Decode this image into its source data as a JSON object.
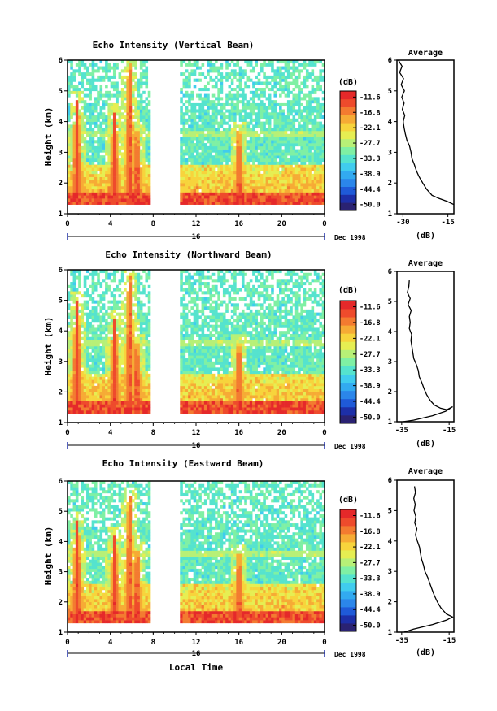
{
  "figure": {
    "xlabel": "Local Time",
    "date_label": "Dec 1998",
    "day_label": "16"
  },
  "colorbar": {
    "unit": "(dB)",
    "range": [
      -53,
      -9
    ],
    "ticks": [
      "-11.6",
      "-16.8",
      "-22.1",
      "-27.7",
      "-33.3",
      "-38.9",
      "-44.4",
      "-50.0"
    ],
    "colors": [
      "#2a2272",
      "#1d2fa8",
      "#1f5ad8",
      "#2b86ea",
      "#32aaf0",
      "#40ccee",
      "#55e3ce",
      "#7ff0a4",
      "#b7f077",
      "#e6ee52",
      "#f7d43c",
      "#f6ab35",
      "#f37b30",
      "#ee4b2c",
      "#e5292a"
    ]
  },
  "chart_data": [
    {
      "type": "heatmap",
      "title": "Echo Intensity (Vertical Beam)",
      "xlabel": "",
      "ylabel": "Height (km)",
      "xlim": [
        0,
        24
      ],
      "ylim": [
        1,
        6
      ],
      "xticks": [
        "0",
        "4",
        "8",
        "12",
        "16",
        "20",
        "0"
      ],
      "yticks": [
        "1",
        "2",
        "3",
        "4",
        "5",
        "6"
      ],
      "gap_hours": [
        7.8,
        10.5
      ],
      "plumes": [
        {
          "center_hour": 0.9,
          "top_km": 4.7,
          "peak_db": -10
        },
        {
          "center_hour": 4.4,
          "top_km": 4.3,
          "peak_db": -10
        },
        {
          "center_hour": 5.8,
          "top_km": 5.9,
          "peak_db": -11
        },
        {
          "center_hour": 6.5,
          "top_km": 3.7,
          "peak_db": -10
        },
        {
          "center_hour": 16.0,
          "top_km": 3.7,
          "peak_db": -11
        }
      ]
    },
    {
      "type": "heatmap",
      "title": "Echo Intensity (Northward Beam)",
      "xlabel": "",
      "ylabel": "Height (km)",
      "xlim": [
        0,
        24
      ],
      "ylim": [
        1,
        6
      ],
      "xticks": [
        "0",
        "4",
        "8",
        "12",
        "16",
        "20",
        "0"
      ],
      "yticks": [
        "1",
        "2",
        "3",
        "4",
        "5",
        "6"
      ],
      "gap_hours": [
        7.8,
        10.5
      ],
      "plumes": [
        {
          "center_hour": 0.9,
          "top_km": 5.0,
          "peak_db": -10
        },
        {
          "center_hour": 4.4,
          "top_km": 4.4,
          "peak_db": -10
        },
        {
          "center_hour": 5.8,
          "top_km": 5.8,
          "peak_db": -11
        },
        {
          "center_hour": 6.5,
          "top_km": 3.6,
          "peak_db": -10
        },
        {
          "center_hour": 16.0,
          "top_km": 3.6,
          "peak_db": -11
        }
      ]
    },
    {
      "type": "heatmap",
      "title": "Echo Intensity (Eastward Beam)",
      "xlabel": "Local Time",
      "ylabel": "Height (km)",
      "xlim": [
        0,
        24
      ],
      "ylim": [
        1,
        6
      ],
      "xticks": [
        "0",
        "4",
        "8",
        "12",
        "16",
        "20",
        "0"
      ],
      "yticks": [
        "1",
        "2",
        "3",
        "4",
        "5",
        "6"
      ],
      "gap_hours": [
        7.8,
        10.5
      ],
      "plumes": [
        {
          "center_hour": 0.9,
          "top_km": 4.7,
          "peak_db": -10
        },
        {
          "center_hour": 4.4,
          "top_km": 4.2,
          "peak_db": -10
        },
        {
          "center_hour": 5.8,
          "top_km": 5.5,
          "peak_db": -11
        },
        {
          "center_hour": 6.5,
          "top_km": 3.7,
          "peak_db": -10
        },
        {
          "center_hour": 16.0,
          "top_km": 3.6,
          "peak_db": -11
        }
      ]
    },
    {
      "type": "line",
      "title": "Average",
      "xlabel": "(dB)",
      "ylabel": "",
      "xlim": [
        -32,
        -13
      ],
      "ylim": [
        1,
        6
      ],
      "xticks": [
        "-30",
        "-15"
      ],
      "xtick_values": [
        -30,
        -15
      ],
      "yticks": [
        "1",
        "2",
        "3",
        "4",
        "5",
        "6"
      ],
      "x": [
        -31.5,
        -30.3,
        -31.1,
        -29.8,
        -30.6,
        -29.5,
        -30.4,
        -29.6,
        -30.2,
        -29.4,
        -29.9,
        -29.6,
        -29.2,
        -28.7,
        -27.8,
        -27.3,
        -27.0,
        -26.2,
        -25.5,
        -24.6,
        -23.4,
        -22.1,
        -20.3,
        -18.0,
        -15.2,
        -13.0
      ],
      "y": [
        6.0,
        5.8,
        5.6,
        5.4,
        5.2,
        5.0,
        4.8,
        4.6,
        4.4,
        4.2,
        4.0,
        3.8,
        3.6,
        3.4,
        3.2,
        3.0,
        2.8,
        2.6,
        2.4,
        2.2,
        2.0,
        1.8,
        1.6,
        1.5,
        1.4,
        1.3
      ]
    },
    {
      "type": "line",
      "title": "Average",
      "xlabel": "(dB)",
      "ylabel": "",
      "xlim": [
        -37,
        -13
      ],
      "ylim": [
        1,
        6
      ],
      "xticks": [
        "-35",
        "-15"
      ],
      "xtick_values": [
        -35,
        -15
      ],
      "yticks": [
        "1",
        "2",
        "3",
        "4",
        "5",
        "6"
      ],
      "x": [
        -31.8,
        -32.0,
        -32.6,
        -31.4,
        -32.3,
        -31.0,
        -31.8,
        -31.4,
        -31.8,
        -30.8,
        -31.1,
        -30.7,
        -30.3,
        -29.9,
        -28.8,
        -28.0,
        -27.6,
        -26.5,
        -25.6,
        -24.5,
        -22.9,
        -21.2,
        -18.6,
        -15.9,
        -13.5,
        -16.5,
        -22.0,
        -30.0,
        -34.5
      ],
      "y": [
        5.7,
        5.5,
        5.3,
        5.1,
        4.9,
        4.7,
        4.5,
        4.3,
        4.1,
        3.9,
        3.7,
        3.5,
        3.3,
        3.1,
        2.9,
        2.7,
        2.5,
        2.3,
        2.1,
        1.9,
        1.7,
        1.55,
        1.45,
        1.4,
        1.5,
        1.35,
        1.2,
        1.05,
        1.0
      ]
    },
    {
      "type": "line",
      "title": "Average",
      "xlabel": "(dB)",
      "ylabel": "",
      "xlim": [
        -37,
        -13
      ],
      "ylim": [
        1,
        6
      ],
      "xticks": [
        "-35",
        "-15"
      ],
      "xtick_values": [
        -35,
        -15
      ],
      "yticks": [
        "1",
        "2",
        "3",
        "4",
        "5",
        "6"
      ],
      "x": [
        -29.6,
        -29.2,
        -29.9,
        -29.3,
        -29.8,
        -29.0,
        -29.5,
        -28.6,
        -29.2,
        -28.4,
        -27.5,
        -27.1,
        -26.6,
        -25.8,
        -25.2,
        -24.0,
        -23.1,
        -22.2,
        -21.2,
        -20.0,
        -18.5,
        -16.2,
        -13.6,
        -16.0,
        -22.0,
        -30.0,
        -34.0
      ],
      "y": [
        5.8,
        5.6,
        5.4,
        5.2,
        5.0,
        4.8,
        4.6,
        4.4,
        4.2,
        4.0,
        3.8,
        3.6,
        3.4,
        3.2,
        3.0,
        2.8,
        2.6,
        2.4,
        2.2,
        2.0,
        1.8,
        1.6,
        1.5,
        1.4,
        1.25,
        1.1,
        1.0
      ]
    }
  ]
}
